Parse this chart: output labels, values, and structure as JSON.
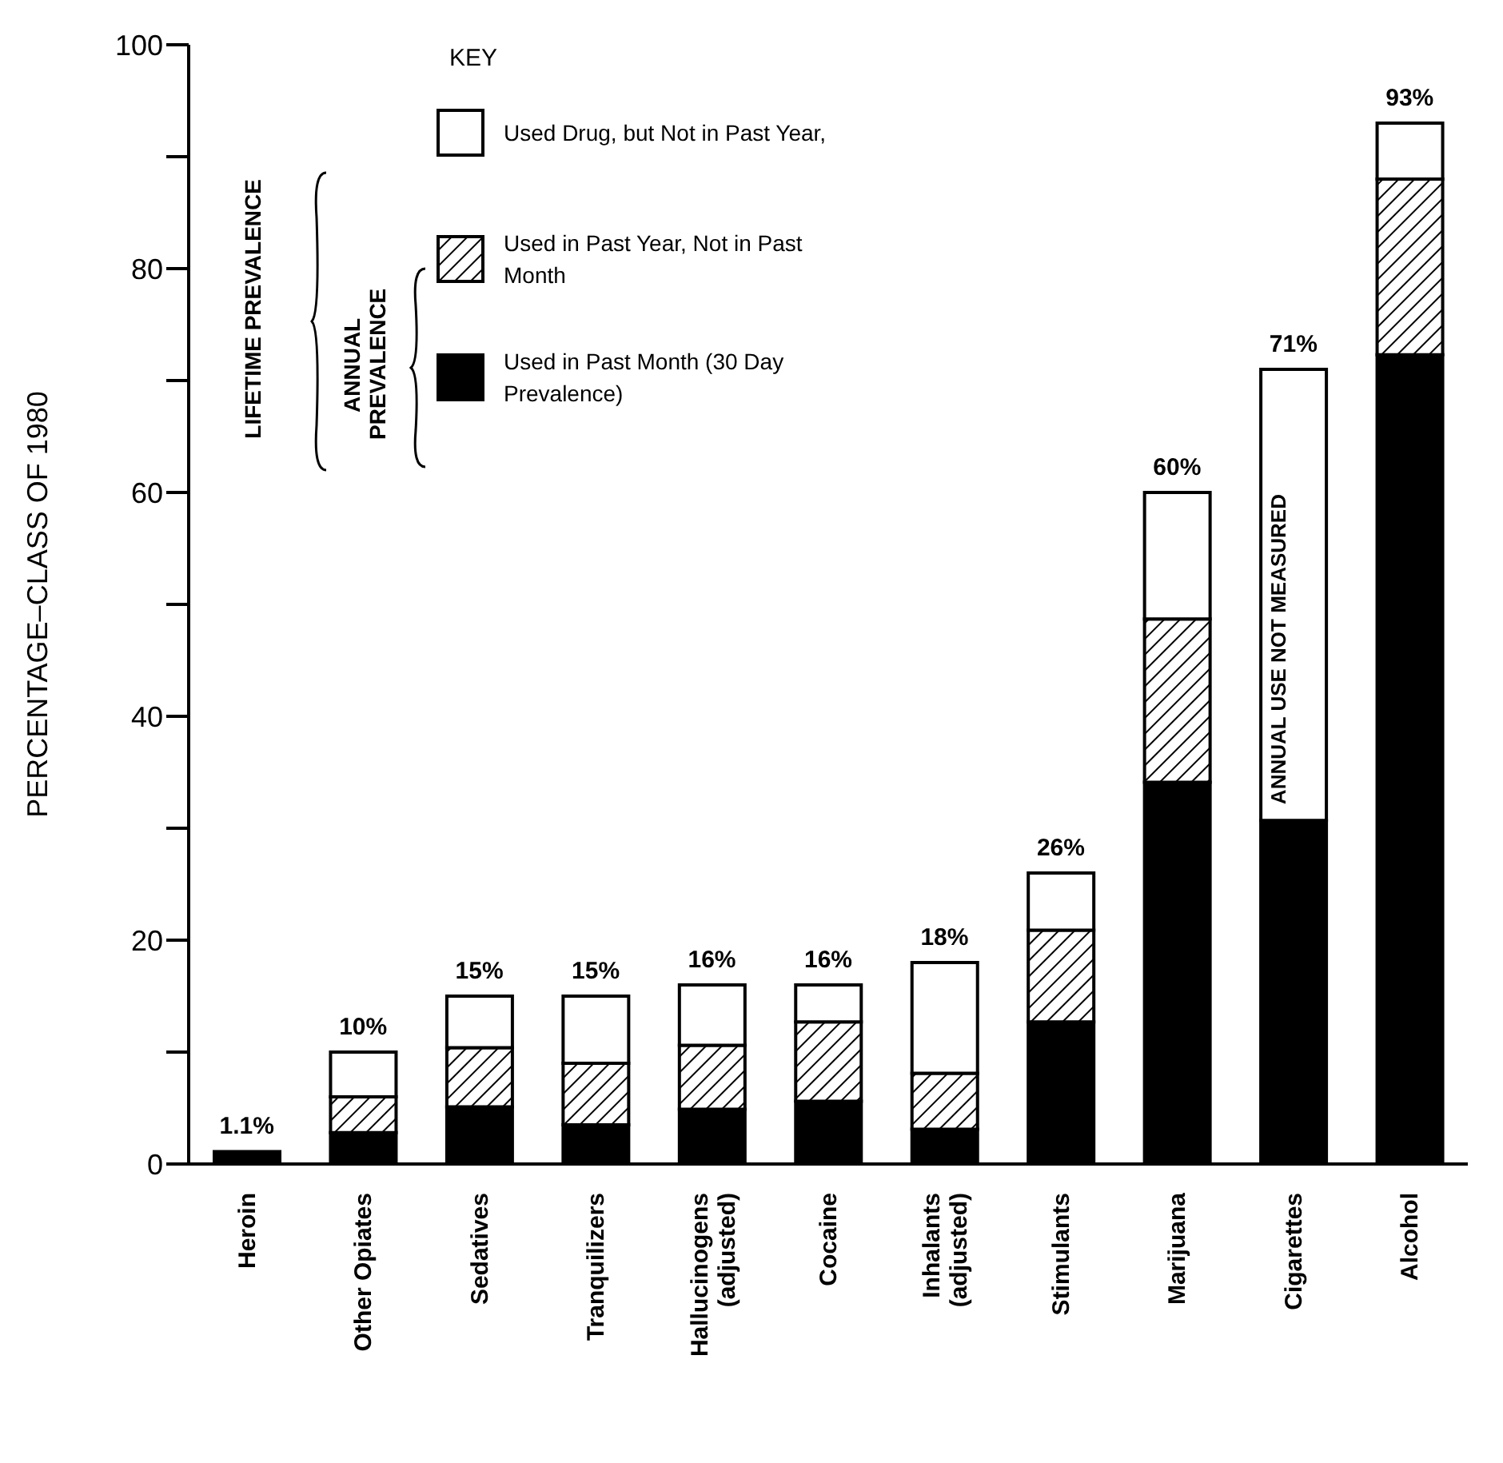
{
  "chart_data": {
    "type": "bar",
    "stacked": true,
    "ylabel": "PERCENTAGE–CLASS OF 1980",
    "legend_title": "KEY",
    "legend": "top left",
    "grid": false,
    "categories": [
      "Heroin",
      "Other Opiates",
      "Sedatives",
      "Tranquilizers",
      "Hallucinogens (adjusted)",
      "Cocaine",
      "Inhalants (adjusted)",
      "Stimulants",
      "Marijuana",
      "Cigarettes",
      "Alcohol"
    ],
    "series": [
      {
        "name": "Used in Past Month (30 Day Prevalence)",
        "color": "#000000",
        "values": [
          1.1,
          2.8,
          5.1,
          3.5,
          4.9,
          5.6,
          3.1,
          12.7,
          34.1,
          30.7,
          72.3
        ]
      },
      {
        "name": "Used in Past Year, Not in Past Month",
        "color": "#000000",
        "values": [
          null,
          3.2,
          5.3,
          5.5,
          5.7,
          7.1,
          5,
          8.2,
          14.6,
          null,
          15.7
        ]
      },
      {
        "name": "Used Drug, but Not in Past Year,",
        "color": "#ffffff",
        "values": [
          null,
          4,
          4.6,
          6,
          5.4,
          3.3,
          9.9,
          5.1,
          11.3,
          40.3,
          5
        ]
      }
    ],
    "totals": [
      "1.1%",
      "10%",
      "15%",
      "15%",
      "16%",
      "16%",
      "18%",
      "26%",
      "60%",
      "71%",
      "93%"
    ],
    "ylim": [
      0,
      100
    ],
    "yticks": [
      0,
      {
        "value": 10,
        "label": null
      },
      20,
      {
        "value": 30,
        "label": null
      },
      40,
      {
        "value": 50,
        "label": null
      },
      60,
      {
        "value": 70,
        "label": null
      },
      80,
      {
        "value": 90,
        "label": null
      },
      100
    ],
    "annotations": [
      "LIFETIME PREVALENCE",
      "ANNUAL PREVALENCE",
      "ANNUAL USE NOT MEASURED"
    ]
  }
}
